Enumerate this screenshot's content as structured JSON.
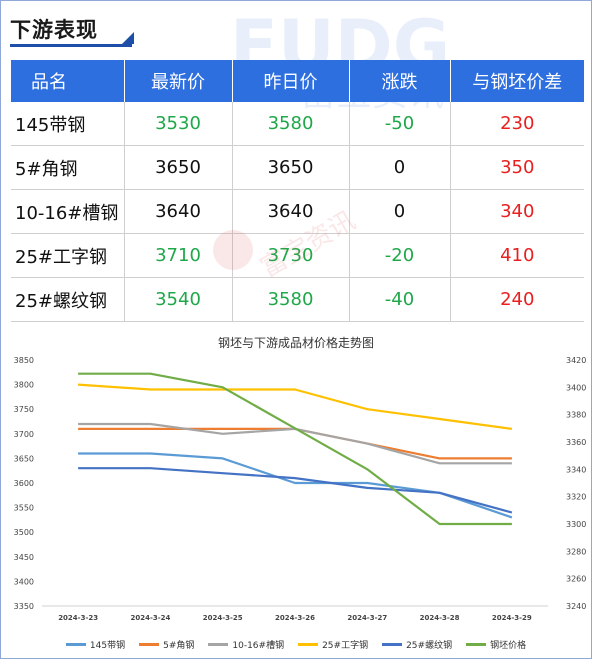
{
  "section_title": "下游表现",
  "table": {
    "headers": [
      "品名",
      "最新价",
      "昨日价",
      "涨跌",
      "与钢坯价差"
    ],
    "rows": [
      {
        "name": "145带钢",
        "latest": "3530",
        "prev": "3580",
        "change": "-50",
        "spread": "230",
        "trend": "down"
      },
      {
        "name": "5#角钢",
        "latest": "3650",
        "prev": "3650",
        "change": "0",
        "spread": "350",
        "trend": "flat"
      },
      {
        "name": "10-16#槽钢",
        "latest": "3640",
        "prev": "3640",
        "change": "0",
        "spread": "340",
        "trend": "flat"
      },
      {
        "name": "25#工字钢",
        "latest": "3710",
        "prev": "3730",
        "change": "-20",
        "spread": "410",
        "trend": "down"
      },
      {
        "name": "25#螺纹钢",
        "latest": "3540",
        "prev": "3580",
        "change": "-40",
        "spread": "240",
        "trend": "down"
      }
    ]
  },
  "chart_data": {
    "type": "line",
    "title": "钢坯与下游成品材价格走势图",
    "x": [
      "2024-3-23",
      "2024-3-24",
      "2024-3-25",
      "2024-3-26",
      "2024-3-27",
      "2024-3-28",
      "2024-3-29"
    ],
    "ylim_left": [
      3350,
      3850
    ],
    "yticks_left": [
      3350,
      3400,
      3450,
      3500,
      3550,
      3600,
      3650,
      3700,
      3750,
      3800,
      3850
    ],
    "ylim_right": [
      3240,
      3420
    ],
    "yticks_right": [
      3240,
      3260,
      3280,
      3300,
      3320,
      3340,
      3360,
      3380,
      3400,
      3420
    ],
    "legend_position": "bottom",
    "series": [
      {
        "name": "145带钢",
        "axis": "left",
        "color": "#5b9bd5",
        "values": [
          3660,
          3660,
          3650,
          3600,
          3600,
          3580,
          3530
        ]
      },
      {
        "name": "5#角钢",
        "axis": "left",
        "color": "#ed7d31",
        "values": [
          3710,
          3710,
          3710,
          3710,
          3680,
          3650,
          3650
        ]
      },
      {
        "name": "10-16#槽钢",
        "axis": "left",
        "color": "#a5a5a5",
        "values": [
          3720,
          3720,
          3700,
          3710,
          3680,
          3640,
          3640
        ]
      },
      {
        "name": "25#工字钢",
        "axis": "left",
        "color": "#ffc000",
        "values": [
          3800,
          3790,
          3790,
          3790,
          3750,
          3730,
          3710
        ]
      },
      {
        "name": "25#螺纹钢",
        "axis": "left",
        "color": "#4472c4",
        "values": [
          3630,
          3630,
          3620,
          3610,
          3590,
          3580,
          3540
        ]
      },
      {
        "name": "钢坯价格",
        "axis": "right",
        "color": "#70ad47",
        "values": [
          3410,
          3410,
          3400,
          3370,
          3340,
          3300,
          3300
        ]
      }
    ]
  }
}
